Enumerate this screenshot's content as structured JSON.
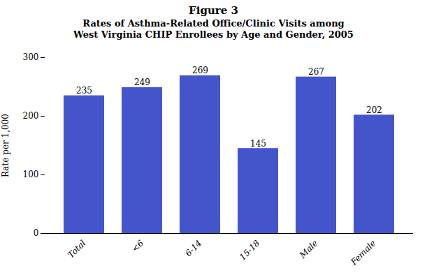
{
  "chart_data": {
    "type": "bar",
    "title": "Figure 3",
    "subtitle": "Rates of Asthma-Related Office/Clinic Visits among\nWest Virginia CHIP Enrollees by Age and Gender, 2005",
    "categories": [
      "Total",
      "<6",
      "6-14",
      "15-18",
      "Male",
      "Female"
    ],
    "values": [
      235,
      249,
      269,
      145,
      267,
      202
    ],
    "color": "#4455cc",
    "ylabel": "Rate per 1,000",
    "ylim": [
      0,
      300
    ],
    "yticks": [
      0,
      100,
      200,
      300
    ],
    "grid": false,
    "data_labels": true
  }
}
